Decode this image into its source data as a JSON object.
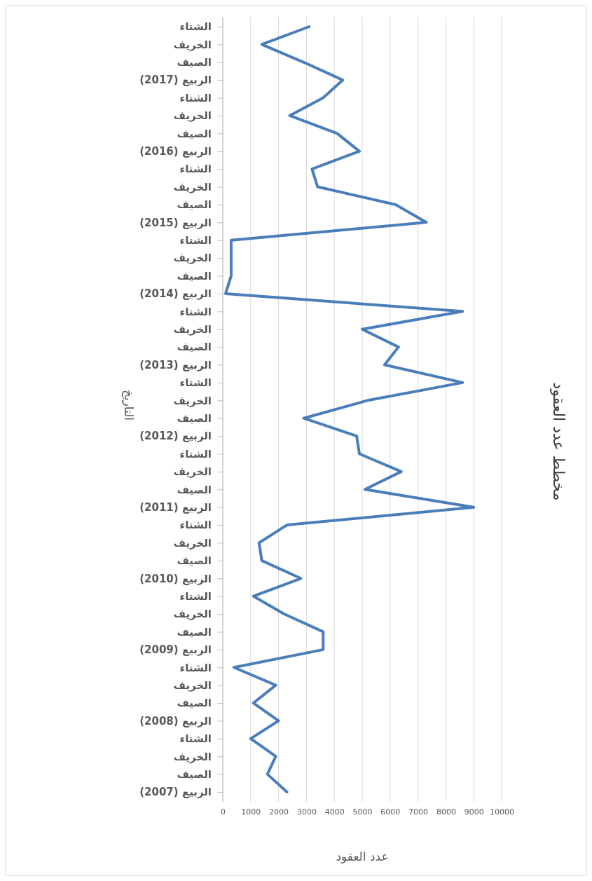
{
  "chart_data": {
    "type": "line",
    "orientation": "horizontal",
    "title": "مخطط عدد العقود",
    "xlabel": "عدد العقود",
    "ylabel": "التاريخ",
    "categories": [
      "الشتاء",
      "الخريف",
      "الصيف",
      "الربيع (2017)",
      "الشتاء",
      "الخريف",
      "الصيف",
      "الربيع (2016)",
      "الشتاء",
      "الخريف",
      "الصيف",
      "الربيع (2015)",
      "الشتاء",
      "الخريف",
      "الصيف",
      "الربيع (2014)",
      "الشتاء",
      "الخريف",
      "الصيف",
      "الربيع (2013)",
      "الشتاء",
      "الخريف",
      "الصيف",
      "الربيع (2012)",
      "الشتاء",
      "الخريف",
      "الصيف",
      "الربيع (2011)",
      "الشتاء",
      "الخريف",
      "الصيف",
      "الربيع (2010)",
      "الشتاء",
      "الخريف",
      "الصيف",
      "الربيع (2009)",
      "الشتاء",
      "الخريف",
      "الصيف",
      "الربيع (2008)",
      "الشتاء",
      "الخريف",
      "الصيف",
      "الربيع (2007)"
    ],
    "series": [
      {
        "color": "#4a7ebb",
        "values": [
          3100,
          1400,
          2900,
          4300,
          3600,
          2400,
          4100,
          4900,
          3200,
          3400,
          6200,
          7300,
          300,
          300,
          300,
          100,
          8600,
          5000,
          6300,
          5800,
          8600,
          5200,
          2900,
          4800,
          4900,
          6400,
          5100,
          9000,
          2300,
          1300,
          1400,
          2800,
          1100,
          2200,
          3600,
          3600,
          400,
          1900,
          1100,
          2000,
          1000,
          1900,
          1600,
          2300
        ]
      }
    ],
    "xlim": [
      0,
      10000
    ],
    "xticks": [
      0,
      1000,
      2000,
      3000,
      4000,
      5000,
      6000,
      7000,
      8000,
      9000,
      10000
    ],
    "grid": "x",
    "marker": "none",
    "line_style": "solid"
  }
}
